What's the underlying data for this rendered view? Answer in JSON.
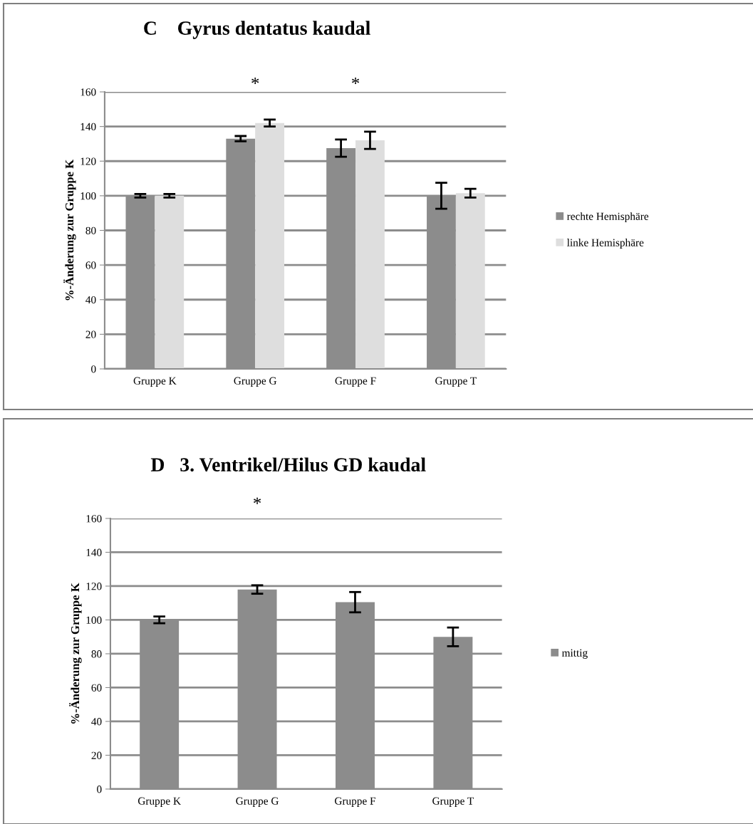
{
  "chart_data": [
    {
      "type": "bar",
      "title": "C    Gyrus dentatus kaudal",
      "ylabel": "%-Änderung zur Gruppe K",
      "categories": [
        "Gruppe K",
        "Gruppe G",
        "Gruppe F",
        "Gruppe T"
      ],
      "series": [
        {
          "name": "rechte Hemisphäre",
          "color": "#8c8c8c",
          "values": [
            100,
            133,
            127.5,
            100
          ],
          "errors": [
            1,
            1.5,
            5,
            7.5
          ]
        },
        {
          "name": "linke Hemisphäre",
          "color": "#dedede",
          "values": [
            100,
            142,
            132,
            101.5
          ],
          "errors": [
            1,
            2,
            5,
            2.5
          ]
        }
      ],
      "ylim": [
        0,
        160
      ],
      "yticks": [
        0,
        20,
        40,
        60,
        80,
        100,
        120,
        140,
        160
      ],
      "grid": "y",
      "legend": "right",
      "annotations": [
        "*",
        "*"
      ]
    },
    {
      "type": "bar",
      "title": "D   3. Ventrikel/Hilus GD kaudal",
      "ylabel": "%-Änderung zur Gruppe K",
      "categories": [
        "Gruppe K",
        "Gruppe G",
        "Gruppe F",
        "Gruppe T"
      ],
      "series": [
        {
          "name": "mittig",
          "color": "#8c8c8c",
          "values": [
            100,
            118,
            110.5,
            90
          ],
          "errors": [
            2,
            2.5,
            6,
            5.5
          ]
        }
      ],
      "ylim": [
        0,
        160
      ],
      "yticks": [
        0,
        20,
        40,
        60,
        80,
        100,
        120,
        140,
        160
      ],
      "grid": "y",
      "legend": "right",
      "annotations": [
        "*"
      ]
    }
  ]
}
